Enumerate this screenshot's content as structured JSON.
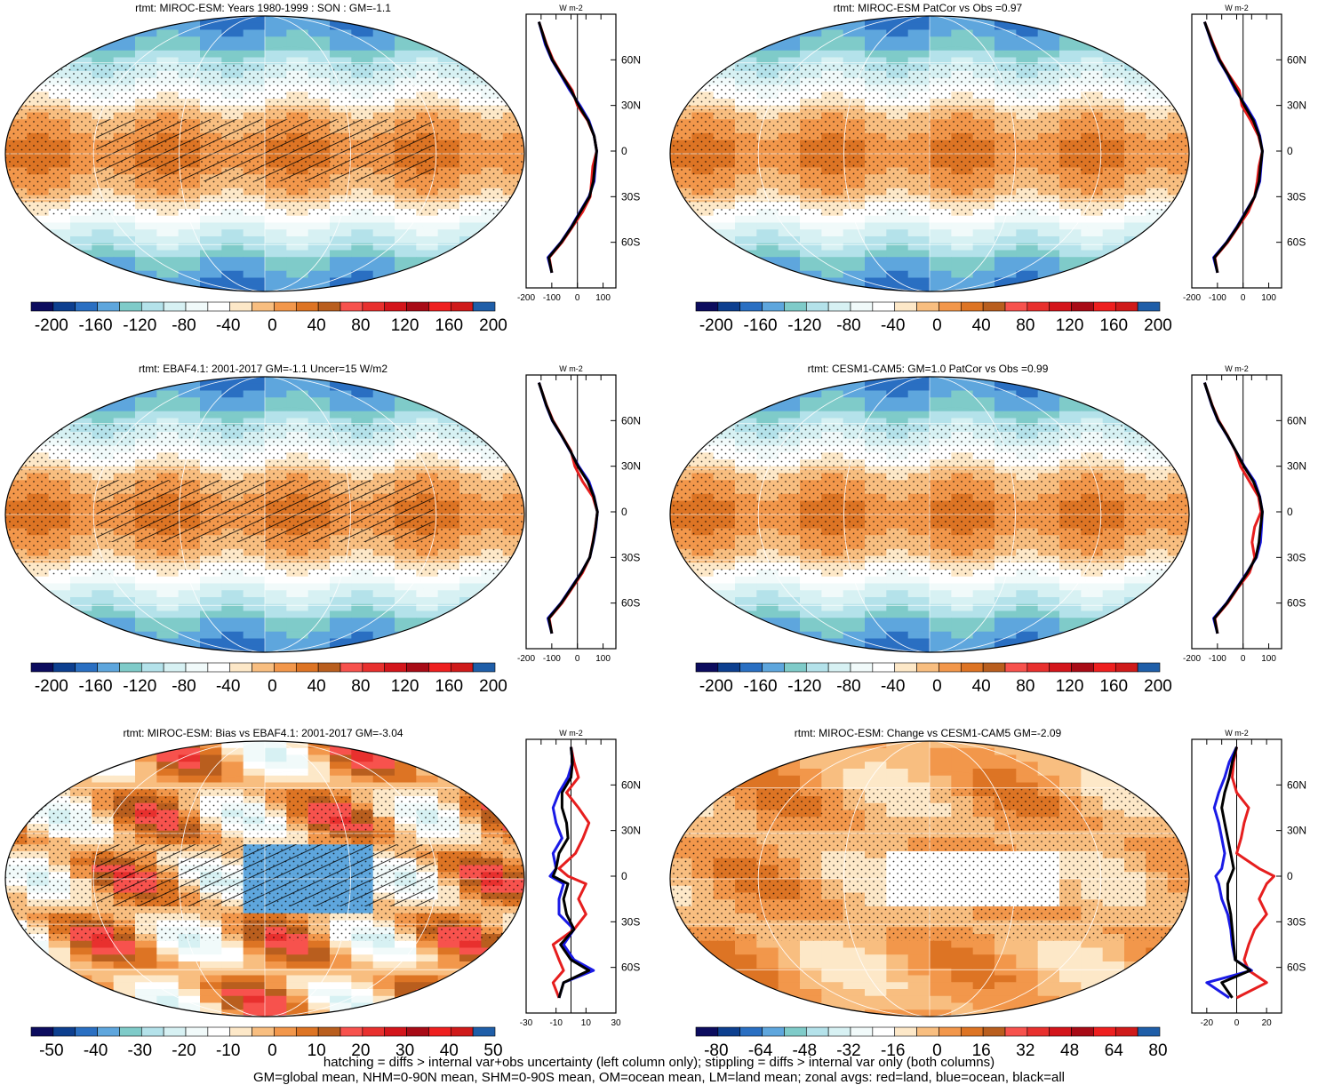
{
  "colors": {
    "main_palette": [
      "#0c0c5e",
      "#0d3f8f",
      "#2a6fc2",
      "#5ea6dd",
      "#7fcbc9",
      "#b4e2ea",
      "#d7f1f3",
      "#f1fafa",
      "#ffffff",
      "#fde8c8",
      "#f8be80",
      "#f2974b",
      "#dd7424",
      "#b95e1e",
      "#f7524d",
      "#e8302e",
      "#d3151b",
      "#a80b16",
      "#ee1f1f",
      "#cf1a1a",
      "#1f5ea8"
    ],
    "bias_palette": [
      "#0c0c5e",
      "#0d3f8f",
      "#2a6fc2",
      "#5ea6dd",
      "#7fcbc9",
      "#b4e2ea",
      "#d7f1f3",
      "#f1fafa",
      "#ffffff",
      "#fde8c8",
      "#f8be80",
      "#f2974b",
      "#dd7424",
      "#b95e1e",
      "#f7524d",
      "#e8302e",
      "#d3151b",
      "#a80b16",
      "#ee1f1f",
      "#cf1a1a",
      "#1f5ea8"
    ],
    "land_line": "#e61e1e",
    "ocean_line": "#1a1ae6",
    "all_line": "#000000",
    "coast": "#000000",
    "grid": "#ffffff"
  },
  "chart_data": [
    {
      "type": "heatmap",
      "id": "p1",
      "title": "rtmt: MIROC-ESM: Years 1980-1999 : SON : GM=-1.1",
      "projection": "robinson",
      "field": "main",
      "hatching": true,
      "stippling": true,
      "colorbar_ticks": [
        "-200",
        "-160",
        "-120",
        "-80",
        "-40",
        "0",
        "40",
        "80",
        "120",
        "160",
        "200"
      ],
      "zonal_profile": {
        "unit": "W m-2",
        "xlim": [
          -200,
          150
        ],
        "xticks": [
          -200,
          -100,
          0,
          100
        ],
        "xtick_labels": [
          "-200",
          "-100",
          "0",
          "100"
        ],
        "lat_labels": [
          "60N",
          "30N",
          "0",
          "30S",
          "60S"
        ],
        "lat": [
          85,
          70,
          60,
          50,
          40,
          30,
          20,
          10,
          0,
          -10,
          -20,
          -30,
          -40,
          -50,
          -60,
          -70,
          -80
        ],
        "land": [
          -150,
          -120,
          -95,
          -60,
          -20,
          0,
          40,
          65,
          75,
          60,
          55,
          50,
          20,
          -20,
          -60,
          -110,
          -100
        ],
        "ocean": [
          -150,
          -125,
          -100,
          -65,
          -30,
          10,
          45,
          65,
          75,
          70,
          65,
          45,
          10,
          -25,
          -65,
          -115,
          -100
        ],
        "all": [
          -150,
          -122,
          -98,
          -62,
          -25,
          5,
          42,
          65,
          75,
          68,
          62,
          47,
          12,
          -23,
          -63,
          -112,
          -100
        ]
      }
    },
    {
      "type": "heatmap",
      "id": "p2",
      "title": "rtmt: MIROC-ESM PatCor vs Obs =0.97",
      "projection": "robinson",
      "field": "main",
      "hatching": false,
      "stippling": true,
      "colorbar_ticks": [
        "-200",
        "-160",
        "-120",
        "-80",
        "-40",
        "0",
        "40",
        "80",
        "120",
        "160",
        "200"
      ],
      "zonal_profile": {
        "unit": "W m-2",
        "xlim": [
          -200,
          150
        ],
        "xticks": [
          -200,
          -100,
          0,
          100
        ],
        "xtick_labels": [
          "-200",
          "-100",
          "0",
          "100"
        ],
        "lat_labels": [
          "60N",
          "30N",
          "0",
          "30S",
          "60S"
        ],
        "lat": [
          85,
          70,
          60,
          50,
          40,
          30,
          20,
          10,
          0,
          -10,
          -20,
          -30,
          -40,
          -50,
          -60,
          -70,
          -80
        ],
        "land": [
          -150,
          -115,
          -90,
          -55,
          -15,
          -5,
          30,
          60,
          75,
          62,
          55,
          45,
          20,
          -20,
          -60,
          -110,
          -100
        ],
        "ocean": [
          -150,
          -120,
          -95,
          -60,
          -30,
          10,
          45,
          65,
          75,
          70,
          65,
          45,
          10,
          -25,
          -65,
          -115,
          -100
        ],
        "all": [
          -150,
          -118,
          -93,
          -58,
          -25,
          5,
          40,
          63,
          75,
          68,
          62,
          45,
          12,
          -23,
          -63,
          -112,
          -100
        ]
      }
    },
    {
      "type": "heatmap",
      "id": "p3",
      "title": "rtmt: EBAF4.1: 2001-2017 GM=-1.1 Uncer=15 W/m2",
      "projection": "robinson",
      "field": "main",
      "hatching": true,
      "stippling": true,
      "colorbar_ticks": [
        "-200",
        "-160",
        "-120",
        "-80",
        "-40",
        "0",
        "40",
        "80",
        "120",
        "160",
        "200"
      ],
      "zonal_profile": {
        "unit": "W m-2",
        "xlim": [
          -200,
          150
        ],
        "xticks": [
          -200,
          -100,
          0,
          100
        ],
        "xtick_labels": [
          "-200",
          "-100",
          "0",
          "100"
        ],
        "lat_labels": [
          "60N",
          "30N",
          "0",
          "30S",
          "60S"
        ],
        "lat": [
          85,
          70,
          60,
          50,
          40,
          30,
          20,
          10,
          0,
          -10,
          -20,
          -30,
          -40,
          -50,
          -60,
          -70,
          -80
        ],
        "land": [
          -150,
          -120,
          -95,
          -60,
          -25,
          -10,
          20,
          60,
          78,
          70,
          60,
          48,
          20,
          -20,
          -60,
          -110,
          -100
        ],
        "ocean": [
          -150,
          -122,
          -98,
          -62,
          -28,
          5,
          45,
          65,
          78,
          72,
          62,
          48,
          15,
          -25,
          -65,
          -115,
          -100
        ],
        "all": [
          -150,
          -121,
          -97,
          -61,
          -27,
          2,
          40,
          64,
          78,
          71,
          61,
          48,
          16,
          -23,
          -63,
          -112,
          -100
        ]
      }
    },
    {
      "type": "heatmap",
      "id": "p4",
      "title": "rtmt: CESM1-CAM5: GM=1.0 PatCor vs Obs =0.99",
      "projection": "robinson",
      "field": "main",
      "hatching": false,
      "stippling": true,
      "colorbar_ticks": [
        "-200",
        "-160",
        "-120",
        "-80",
        "-40",
        "0",
        "40",
        "80",
        "120",
        "160",
        "200"
      ],
      "zonal_profile": {
        "unit": "W m-2",
        "xlim": [
          -200,
          150
        ],
        "xticks": [
          -200,
          -100,
          0,
          100
        ],
        "xtick_labels": [
          "-200",
          "-100",
          "0",
          "100"
        ],
        "lat_labels": [
          "60N",
          "30N",
          "0",
          "30S",
          "60S"
        ],
        "lat": [
          85,
          70,
          60,
          50,
          40,
          30,
          20,
          10,
          0,
          -10,
          -20,
          -30,
          -40,
          -50,
          -60,
          -70,
          -80
        ],
        "land": [
          -150,
          -120,
          -95,
          -60,
          -30,
          -10,
          25,
          60,
          70,
          45,
          35,
          45,
          25,
          -20,
          -60,
          -110,
          -100
        ],
        "ocean": [
          -150,
          -122,
          -98,
          -62,
          -28,
          5,
          45,
          65,
          75,
          72,
          68,
          52,
          15,
          -25,
          -65,
          -115,
          -100
        ],
        "all": [
          -150,
          -121,
          -97,
          -61,
          -28,
          3,
          40,
          64,
          75,
          68,
          62,
          50,
          17,
          -23,
          -63,
          -112,
          -100
        ]
      }
    },
    {
      "type": "heatmap",
      "id": "p5",
      "title": "rtmt: MIROC-ESM: Bias vs EBAF4.1: 2001-2017  GM=-3.04",
      "projection": "robinson",
      "field": "bias",
      "hatching": true,
      "stippling": true,
      "colorbar_ticks": [
        "-50",
        "-40",
        "-30",
        "-20",
        "-10",
        "0",
        "10",
        "20",
        "30",
        "40",
        "50"
      ],
      "zonal_profile": {
        "unit": "W m-2",
        "xlim": [
          -30,
          30
        ],
        "xticks": [
          -30,
          -10,
          10,
          30
        ],
        "xtick_labels": [
          "-30",
          "-10",
          "10",
          "30"
        ],
        "lat_labels": [
          "60N",
          "30N",
          "0",
          "30S",
          "60S"
        ],
        "lat": [
          85,
          75,
          65,
          55,
          45,
          35,
          25,
          15,
          5,
          0,
          -5,
          -15,
          -25,
          -35,
          -45,
          -55,
          -62,
          -70,
          -80
        ],
        "land": [
          0,
          2,
          5,
          -3,
          5,
          12,
          8,
          3,
          -8,
          -2,
          10,
          5,
          10,
          2,
          -12,
          -8,
          -5,
          -12,
          -8
        ],
        "ocean": [
          0,
          1,
          -2,
          -8,
          -12,
          -10,
          -6,
          -12,
          -10,
          -14,
          -5,
          -8,
          -8,
          2,
          -5,
          2,
          15,
          -5,
          -8
        ],
        "all": [
          0,
          1,
          0,
          -6,
          -6,
          -3,
          -2,
          -8,
          -10,
          -12,
          -2,
          -5,
          -3,
          2,
          -7,
          0,
          12,
          -5,
          -8
        ]
      }
    },
    {
      "type": "heatmap",
      "id": "p6",
      "title": "rtmt: MIROC-ESM: Change vs CESM1-CAM5 GM=-2.09",
      "projection": "robinson",
      "field": "change",
      "hatching": false,
      "stippling": true,
      "colorbar_ticks": [
        "-80",
        "-64",
        "-48",
        "-32",
        "-16",
        "0",
        "16",
        "32",
        "48",
        "64",
        "80"
      ],
      "zonal_profile": {
        "unit": "W m-2",
        "xlim": [
          -30,
          30
        ],
        "xticks": [
          -20,
          0,
          20
        ],
        "xtick_labels": [
          "-20",
          "0",
          "20"
        ],
        "lat_labels": [
          "60N",
          "30N",
          "0",
          "30S",
          "60S"
        ],
        "lat": [
          85,
          75,
          65,
          55,
          45,
          35,
          25,
          15,
          5,
          0,
          -5,
          -15,
          -25,
          -35,
          -45,
          -55,
          -62,
          -70,
          -80
        ],
        "land": [
          0,
          -2,
          -3,
          0,
          8,
          5,
          3,
          0,
          15,
          25,
          20,
          15,
          20,
          12,
          8,
          5,
          8,
          20,
          0
        ],
        "ocean": [
          0,
          -5,
          -8,
          -12,
          -15,
          -12,
          -10,
          -8,
          -10,
          -14,
          -12,
          -10,
          -6,
          -4,
          -3,
          -1,
          10,
          -20,
          -5
        ],
        "all": [
          0,
          -3,
          -5,
          -8,
          -10,
          -8,
          -6,
          -4,
          -2,
          -4,
          -6,
          -6,
          -4,
          -3,
          -2,
          -1,
          9,
          -10,
          -3
        ]
      }
    }
  ],
  "footer": {
    "line1": "hatching = diffs > internal var+obs uncertainty (left column only); stippling = diffs > internal var only (both columns)",
    "line2": "GM=global mean, NHM=0-90N mean, SHM=0-90S mean, OM=ocean mean, LM=land mean; zonal avgs: red=land, blue=ocean, black=all"
  }
}
